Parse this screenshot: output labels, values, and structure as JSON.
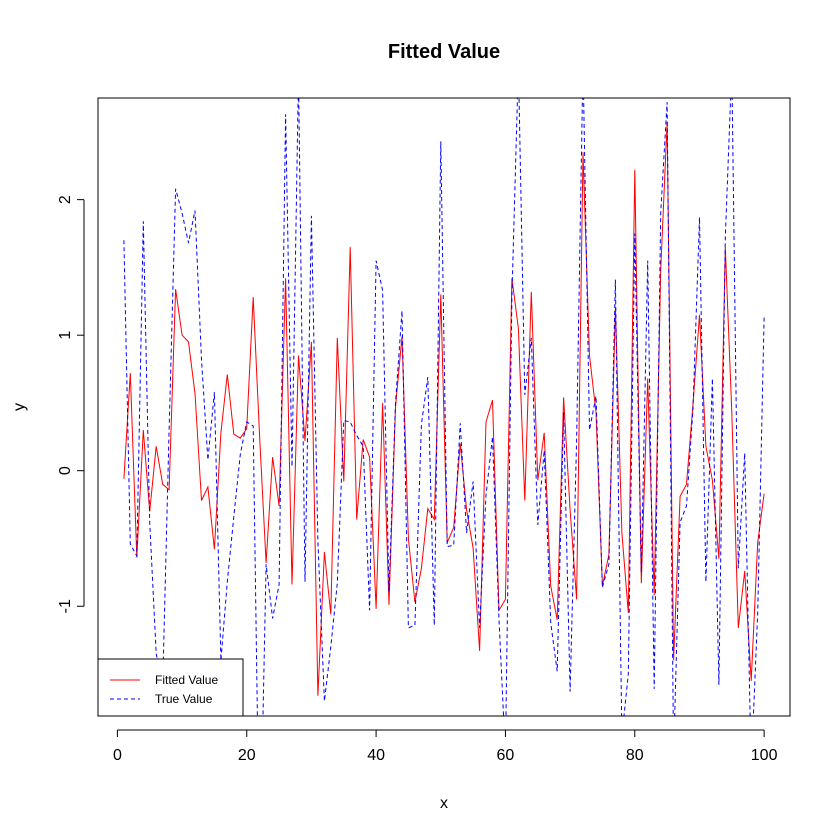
{
  "chart_data": {
    "type": "line",
    "title": "Fitted Value",
    "xlabel": "x",
    "ylabel": "y",
    "xlim": [
      -3,
      104
    ],
    "ylim": [
      -1.81,
      2.75
    ],
    "xticks": [
      0,
      20,
      40,
      60,
      80,
      100
    ],
    "yticks": [
      -1,
      0,
      1,
      2
    ],
    "grid": false,
    "legend": "bottom-left",
    "x": [
      1,
      2,
      3,
      4,
      5,
      6,
      7,
      8,
      9,
      10,
      11,
      12,
      13,
      14,
      15,
      16,
      17,
      18,
      19,
      20,
      21,
      22,
      23,
      24,
      25,
      26,
      27,
      28,
      29,
      30,
      31,
      32,
      33,
      34,
      35,
      36,
      37,
      38,
      39,
      40,
      41,
      42,
      43,
      44,
      45,
      46,
      47,
      48,
      49,
      50,
      51,
      52,
      53,
      54,
      55,
      56,
      57,
      58,
      59,
      60,
      61,
      62,
      63,
      64,
      65,
      66,
      67,
      68,
      69,
      70,
      71,
      72,
      73,
      74,
      75,
      76,
      77,
      78,
      79,
      80,
      81,
      82,
      83,
      84,
      85,
      86,
      87,
      88,
      89,
      90,
      91,
      92,
      93,
      94,
      95,
      96,
      97,
      98,
      99,
      100
    ],
    "series": [
      {
        "name": "Fitted Value",
        "color": "#ff0000",
        "dash": "solid",
        "values": [
          -0.06,
          0.72,
          -0.64,
          0.3,
          -0.3,
          0.18,
          -0.1,
          -0.14,
          1.34,
          1.0,
          0.95,
          0.57,
          -0.22,
          -0.12,
          -0.58,
          0.28,
          0.71,
          0.27,
          0.24,
          0.31,
          1.28,
          0.24,
          -0.68,
          0.1,
          -0.26,
          1.42,
          -0.84,
          0.85,
          0.22,
          0.95,
          -1.66,
          -0.6,
          -1.06,
          0.98,
          -0.08,
          1.65,
          -0.36,
          0.23,
          0.1,
          -1.02,
          0.5,
          -0.99,
          0.47,
          0.99,
          -0.5,
          -0.97,
          -0.72,
          -0.28,
          -0.36,
          1.3,
          -0.53,
          -0.42,
          0.2,
          -0.29,
          -0.57,
          -1.33,
          0.36,
          0.52,
          -1.03,
          -0.95,
          1.42,
          1.05,
          -0.22,
          1.32,
          -0.07,
          0.28,
          -0.85,
          -1.1,
          0.54,
          -0.29,
          -0.95,
          2.35,
          0.85,
          0.43,
          -0.85,
          -0.62,
          1.2,
          -0.46,
          -1.05,
          2.22,
          -0.83,
          0.68,
          -0.92,
          1.48,
          2.57,
          -1.4,
          -0.19,
          -0.1,
          0.49,
          1.15,
          0.18,
          -0.07,
          -0.65,
          1.65,
          0.43,
          -1.16,
          -0.74,
          -1.55,
          -0.53,
          -0.17
        ]
      },
      {
        "name": "True Value",
        "color": "#0000ff",
        "dash": "dashed",
        "values": [
          1.7,
          -0.54,
          -0.63,
          1.84,
          -0.38,
          -1.35,
          -1.58,
          0.3,
          2.08,
          1.9,
          1.68,
          1.92,
          0.82,
          0.08,
          0.58,
          -1.4,
          -0.82,
          -0.34,
          0.12,
          0.36,
          0.33,
          -3.0,
          -0.69,
          -1.09,
          -0.84,
          2.63,
          0.03,
          2.92,
          -0.82,
          1.88,
          -0.52,
          -1.7,
          -1.3,
          -0.83,
          0.37,
          0.36,
          0.26,
          0.18,
          -1.03,
          1.55,
          1.33,
          -0.89,
          0.5,
          1.18,
          -1.16,
          -1.14,
          0.34,
          0.69,
          -1.14,
          2.43,
          -0.56,
          -0.55,
          0.35,
          -0.46,
          -0.08,
          -1.16,
          -0.18,
          0.25,
          -1.1,
          -2.1,
          1.28,
          3.0,
          0.56,
          0.98,
          -0.4,
          0.15,
          -1.12,
          -1.48,
          0.43,
          -1.63,
          0.22,
          3.01,
          0.3,
          0.55,
          -0.86,
          -0.69,
          1.41,
          -1.96,
          -1.5,
          1.75,
          -0.75,
          1.55,
          -1.61,
          1.9,
          2.72,
          -2.1,
          -0.38,
          -0.26,
          0.46,
          1.87,
          -0.82,
          0.68,
          -1.58,
          1.72,
          2.98,
          -0.72,
          0.13,
          -2.2,
          -1.05,
          1.13
        ]
      }
    ]
  }
}
